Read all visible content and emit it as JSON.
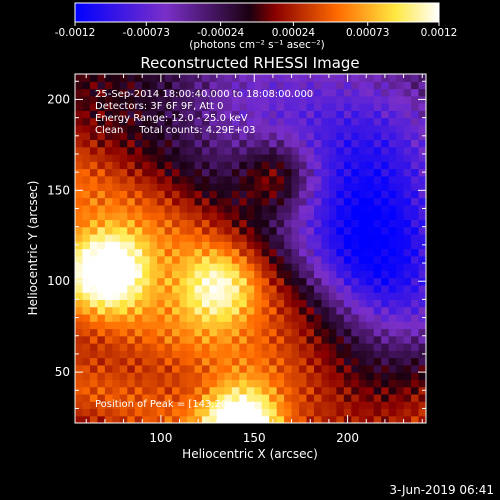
{
  "chart_data": {
    "type": "heatmap",
    "title": "Reconstructed RHESSI Image",
    "xlabel": "Heliocentric X (arcsec)",
    "ylabel": "Heliocentric Y (arcsec)",
    "xlim": [
      54,
      242
    ],
    "ylim": [
      22,
      214
    ],
    "x_ticks": [
      100,
      150,
      200
    ],
    "y_ticks": [
      50,
      100,
      150,
      200
    ],
    "colorbar": {
      "range": [
        -0.0012,
        0.0012
      ],
      "tick_values": [
        -0.0012,
        -0.00073,
        -0.00024,
        0.00024,
        0.00073,
        0.0012
      ],
      "tick_labels": [
        "-0.0012",
        "-0.00073",
        "-0.00024",
        "0.00024",
        "0.00073",
        "0.0012"
      ],
      "label": "(photons cm⁻² s⁻¹ asec⁻²)",
      "colors": [
        "#0000ff",
        "#7a2fc8",
        "#1a0010",
        "#8a0000",
        "#ff6a00",
        "#ffe840",
        "#ffffff"
      ]
    },
    "annotations": [
      "25-Sep-2014 18:00:40.000 to 18:08:00.000",
      "Detectors: 3F 6F 9F, Att 0",
      "Energy Range: 12.0 - 25.0 keV",
      "Clean     Total counts: 4.29E+03"
    ],
    "peak_label": "Position of Peak = [143,20]",
    "peak": [
      143,
      20
    ],
    "bright_sources": [
      {
        "x": 72,
        "y": 107,
        "level": 0.95
      },
      {
        "x": 143,
        "y": 22,
        "level": 1.0
      },
      {
        "x": 130,
        "y": 96,
        "level": 0.55
      },
      {
        "x": 162,
        "y": 158,
        "level": 0.5
      }
    ],
    "negative_regions": [
      {
        "x": 212,
        "y": 118,
        "level": -0.85
      },
      {
        "x": 215,
        "y": 180,
        "level": -0.55
      },
      {
        "x": 225,
        "y": 55,
        "level": -0.55
      },
      {
        "x": 150,
        "y": 200,
        "level": -0.45
      }
    ]
  },
  "footer": {
    "date": "3-Jun-2019 06:41"
  }
}
